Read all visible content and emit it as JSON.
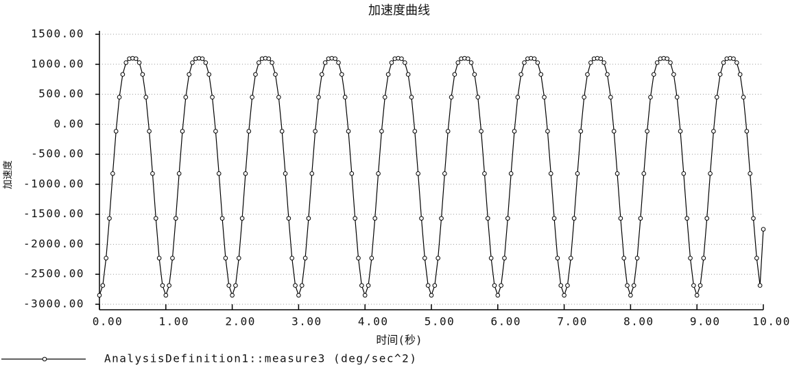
{
  "chart_data": {
    "type": "line",
    "title": "加速度曲线",
    "xlabel": "时间(秒)",
    "ylabel": "加速度",
    "x": [
      0,
      0.05,
      0.1,
      0.15,
      0.2,
      0.25,
      0.3,
      0.35,
      0.4,
      0.45,
      0.5,
      0.55,
      0.6,
      0.65,
      0.7,
      0.75,
      0.8,
      0.85,
      0.9,
      0.95,
      1,
      1.05,
      1.1,
      1.15,
      1.2,
      1.25,
      1.3,
      1.35,
      1.4,
      1.45,
      1.5,
      1.55,
      1.6,
      1.65,
      1.7,
      1.75,
      1.8,
      1.85,
      1.9,
      1.95,
      2,
      2.05,
      2.1,
      2.15,
      2.2,
      2.25,
      2.3,
      2.35,
      2.4,
      2.45,
      2.5,
      2.55,
      2.6,
      2.65,
      2.7,
      2.75,
      2.8,
      2.85,
      2.9,
      2.95,
      3,
      3.05,
      3.1,
      3.15,
      3.2,
      3.25,
      3.3,
      3.35,
      3.4,
      3.45,
      3.5,
      3.55,
      3.6,
      3.65,
      3.7,
      3.75,
      3.8,
      3.85,
      3.9,
      3.95,
      4,
      4.05,
      4.1,
      4.15,
      4.2,
      4.25,
      4.3,
      4.35,
      4.4,
      4.45,
      4.5,
      4.55,
      4.6,
      4.65,
      4.7,
      4.75,
      4.8,
      4.85,
      4.9,
      4.95,
      5,
      5.05,
      5.1,
      5.15,
      5.2,
      5.25,
      5.3,
      5.35,
      5.4,
      5.45,
      5.5,
      5.55,
      5.6,
      5.65,
      5.7,
      5.75,
      5.8,
      5.85,
      5.9,
      5.95,
      6,
      6.05,
      6.1,
      6.15,
      6.2,
      6.25,
      6.3,
      6.35,
      6.4,
      6.45,
      6.5,
      6.55,
      6.6,
      6.65,
      6.7,
      6.75,
      6.8,
      6.85,
      6.9,
      6.95,
      7,
      7.05,
      7.1,
      7.15,
      7.2,
      7.25,
      7.3,
      7.35,
      7.4,
      7.45,
      7.5,
      7.55,
      7.6,
      7.65,
      7.7,
      7.75,
      7.8,
      7.85,
      7.9,
      7.95,
      8,
      8.05,
      8.1,
      8.15,
      8.2,
      8.25,
      8.3,
      8.35,
      8.4,
      8.45,
      8.5,
      8.55,
      8.6,
      8.65,
      8.7,
      8.75,
      8.8,
      8.85,
      8.9,
      8.95,
      9,
      9.05,
      9.1,
      9.15,
      9.2,
      9.25,
      9.3,
      9.35,
      9.4,
      9.45,
      9.5,
      9.55,
      9.6,
      9.65,
      9.7,
      9.75,
      9.8,
      9.85,
      9.9,
      9.95,
      10
    ],
    "series": [
      {
        "name": "AnalysisDefinition1::measure3 (deg/sec^2)",
        "color": "#000000",
        "values": [
          -2850,
          -2687,
          -2231,
          -1568,
          -822,
          -116,
          451,
          831,
          1027,
          1093,
          1100,
          1093,
          1027,
          831,
          451,
          -116,
          -822,
          -1568,
          -2231,
          -2687,
          -2850,
          -2687,
          -2231,
          -1568,
          -822,
          -116,
          451,
          831,
          1027,
          1093,
          1100,
          1093,
          1027,
          831,
          451,
          -116,
          -822,
          -1568,
          -2231,
          -2687,
          -2850,
          -2687,
          -2231,
          -1568,
          -822,
          -116,
          451,
          831,
          1027,
          1093,
          1100,
          1093,
          1027,
          831,
          451,
          -116,
          -822,
          -1568,
          -2231,
          -2687,
          -2850,
          -2687,
          -2231,
          -1568,
          -822,
          -116,
          451,
          831,
          1027,
          1093,
          1100,
          1093,
          1027,
          831,
          451,
          -116,
          -822,
          -1568,
          -2231,
          -2687,
          -2850,
          -2687,
          -2231,
          -1568,
          -822,
          -116,
          451,
          831,
          1027,
          1093,
          1100,
          1093,
          1027,
          831,
          451,
          -116,
          -822,
          -1568,
          -2231,
          -2687,
          -2850,
          -2687,
          -2231,
          -1568,
          -822,
          -116,
          451,
          831,
          1027,
          1093,
          1100,
          1093,
          1027,
          831,
          451,
          -116,
          -822,
          -1568,
          -2231,
          -2687,
          -2850,
          -2687,
          -2231,
          -1568,
          -822,
          -116,
          451,
          831,
          1027,
          1093,
          1100,
          1093,
          1027,
          831,
          451,
          -116,
          -822,
          -1568,
          -2231,
          -2687,
          -2850,
          -2687,
          -2231,
          -1568,
          -822,
          -116,
          451,
          831,
          1027,
          1093,
          1100,
          1093,
          1027,
          831,
          451,
          -116,
          -822,
          -1568,
          -2231,
          -2687,
          -2850,
          -2687,
          -2231,
          -1568,
          -822,
          -116,
          451,
          831,
          1027,
          1093,
          1100,
          1093,
          1027,
          831,
          451,
          -116,
          -822,
          -1568,
          -2231,
          -2687,
          -2850,
          -2687,
          -2231,
          -1568,
          -822,
          -116,
          451,
          831,
          1027,
          1093,
          1100,
          1093,
          1027,
          831,
          451,
          -116,
          -822,
          -1568,
          -2231,
          -2687,
          -1750
        ]
      }
    ],
    "xlim": [
      0,
      10
    ],
    "xticks": [
      {
        "value": 0,
        "label": "0.00"
      },
      {
        "value": 1,
        "label": "1.00"
      },
      {
        "value": 2,
        "label": "2.00"
      },
      {
        "value": 3,
        "label": "3.00"
      },
      {
        "value": 4,
        "label": "4.00"
      },
      {
        "value": 5,
        "label": "5.00"
      },
      {
        "value": 6,
        "label": "6.00"
      },
      {
        "value": 7,
        "label": "7.00"
      },
      {
        "value": 8,
        "label": "8.00"
      },
      {
        "value": 9,
        "label": "9.00"
      },
      {
        "value": 10,
        "label": "10.00"
      }
    ],
    "ylim": [
      -3000,
      1500
    ],
    "yticks": [
      {
        "value": -3000,
        "label": "-3000.00"
      },
      {
        "value": -2500,
        "label": "-2500.00"
      },
      {
        "value": -2000,
        "label": "-2000.00"
      },
      {
        "value": -1500,
        "label": "-1500.00"
      },
      {
        "value": -1000,
        "label": "-1000.00"
      },
      {
        "value": -500,
        "label": "-500.00"
      },
      {
        "value": 0,
        "label": "0.00"
      },
      {
        "value": 500,
        "label": "500.00"
      },
      {
        "value": 1000,
        "label": "1000.00"
      },
      {
        "value": 1500,
        "label": "1500.00"
      }
    ],
    "grid": true,
    "legend": "bottom"
  }
}
